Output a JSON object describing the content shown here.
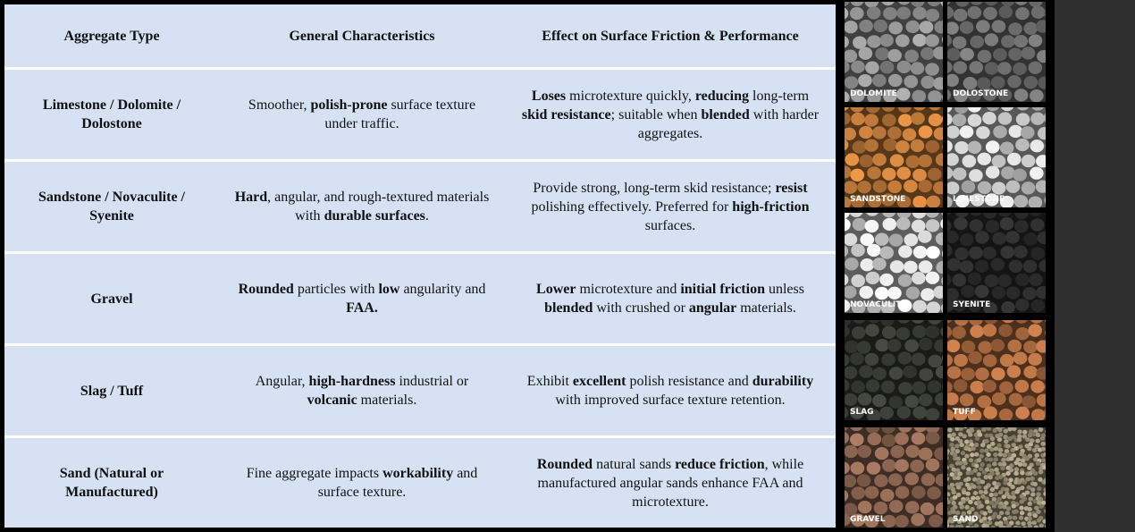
{
  "table": {
    "header": [
      "Aggregate Type",
      "General Characteristics",
      "Effect on Surface Friction & Performance"
    ],
    "rows": [
      [
        [
          {
            "text": "Limestone / Dolomite / Dolostone",
            "bold": true
          }
        ],
        [
          {
            "text": "Smoother, ",
            "bold": false
          },
          {
            "text": "polish-prone",
            "bold": true
          },
          {
            "text": " surface texture under traffic.",
            "bold": false
          }
        ],
        [
          {
            "text": "Loses",
            "bold": true
          },
          {
            "text": " microtexture quickly, ",
            "bold": false
          },
          {
            "text": "reducing",
            "bold": true
          },
          {
            "text": " long-term ",
            "bold": false
          },
          {
            "text": "skid resistance",
            "bold": true
          },
          {
            "text": "; suitable when ",
            "bold": false
          },
          {
            "text": "blended",
            "bold": true
          },
          {
            "text": " with harder aggregates.",
            "bold": false
          }
        ]
      ],
      [
        [
          {
            "text": "Sandstone / Novaculite / Syenite",
            "bold": true
          }
        ],
        [
          {
            "text": "Hard",
            "bold": true
          },
          {
            "text": ", angular, and rough-textured materials with ",
            "bold": false
          },
          {
            "text": "durable surfaces",
            "bold": true
          },
          {
            "text": ".",
            "bold": false
          }
        ],
        [
          {
            "text": "Provide strong, long-term skid resistance; ",
            "bold": false
          },
          {
            "text": "resist",
            "bold": true
          },
          {
            "text": " polishing effectively. Preferred for ",
            "bold": false
          },
          {
            "text": "high-friction",
            "bold": true
          },
          {
            "text": " surfaces.",
            "bold": false
          }
        ]
      ],
      [
        [
          {
            "text": "Gravel",
            "bold": true
          }
        ],
        [
          {
            "text": "Rounded",
            "bold": true
          },
          {
            "text": " particles with ",
            "bold": false
          },
          {
            "text": "low",
            "bold": true
          },
          {
            "text": " angularity and ",
            "bold": false
          },
          {
            "text": "FAA.",
            "bold": true
          }
        ],
        [
          {
            "text": "Lower",
            "bold": true
          },
          {
            "text": " microtexture and ",
            "bold": false
          },
          {
            "text": "initial friction",
            "bold": true
          },
          {
            "text": " unless ",
            "bold": false
          },
          {
            "text": "blended",
            "bold": true
          },
          {
            "text": " with crushed or ",
            "bold": false
          },
          {
            "text": "angular",
            "bold": true
          },
          {
            "text": " materials.",
            "bold": false
          }
        ]
      ],
      [
        [
          {
            "text": "Slag / Tuff",
            "bold": true
          }
        ],
        [
          {
            "text": "Angular, ",
            "bold": false
          },
          {
            "text": "high-hardness",
            "bold": true
          },
          {
            "text": " industrial or ",
            "bold": false
          },
          {
            "text": "volcanic",
            "bold": true
          },
          {
            "text": " materials.",
            "bold": false
          }
        ],
        [
          {
            "text": "Exhibit ",
            "bold": false
          },
          {
            "text": "excellent",
            "bold": true
          },
          {
            "text": " polish resistance and ",
            "bold": false
          },
          {
            "text": "durability",
            "bold": true
          },
          {
            "text": " with improved surface texture retention.",
            "bold": false
          }
        ]
      ],
      [
        [
          {
            "text": "Sand (Natural or Manufactured)",
            "bold": true
          }
        ],
        [
          {
            "text": "Fine aggregate impacts ",
            "bold": false
          },
          {
            "text": "workability",
            "bold": true
          },
          {
            "text": " and surface texture.",
            "bold": false
          }
        ],
        [
          {
            "text": "Rounded",
            "bold": true
          },
          {
            "text": " natural sands ",
            "bold": false
          },
          {
            "text": "reduce friction",
            "bold": true
          },
          {
            "text": ", while manufactured angular sands enhance FAA and microtexture.",
            "bold": false
          }
        ]
      ]
    ]
  },
  "swatches": [
    {
      "label": "DOLOMITE",
      "color": "#8f8f8f"
    },
    {
      "label": "DOLOSTONE",
      "color": "#6e6e6e"
    },
    {
      "label": "SANDSTONE",
      "color": "#c07a3a"
    },
    {
      "label": "LIMESTONE",
      "color": "#c4c4c4"
    },
    {
      "label": "NOVACULITE",
      "color": "#cfcfcf"
    },
    {
      "label": "SYENITE",
      "color": "#2c2c2c"
    },
    {
      "label": "SLAG",
      "color": "#3a3c36"
    },
    {
      "label": "TUFF",
      "color": "#a8693f"
    },
    {
      "label": "GRAVEL",
      "color": "#8a6450"
    },
    {
      "label": "SAND",
      "color": "#9a9076"
    }
  ]
}
